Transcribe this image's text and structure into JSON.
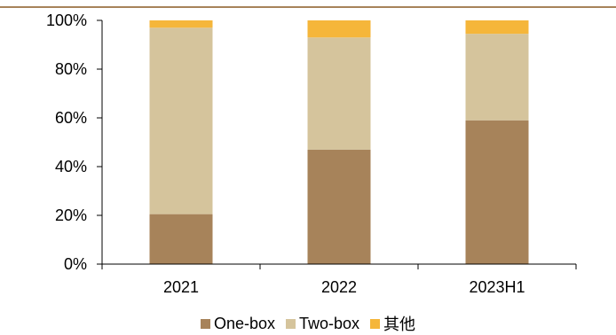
{
  "chart_data": {
    "type": "bar",
    "stacked": true,
    "categories": [
      "2021",
      "2022",
      "2023H1"
    ],
    "series": [
      {
        "name": "One-box",
        "color": "#a7835a",
        "values": [
          20.5,
          47,
          59
        ]
      },
      {
        "name": "Two-box",
        "color": "#d5c49c",
        "values": [
          76.5,
          46,
          35.5
        ]
      },
      {
        "name": "其他",
        "color": "#f5b63a",
        "values": [
          3,
          7,
          5.5
        ]
      }
    ],
    "ylim": [
      0,
      100
    ],
    "yticks": [
      "0%",
      "20%",
      "40%",
      "60%",
      "80%",
      "100%"
    ],
    "grid": false,
    "legend_position": "bottom"
  }
}
